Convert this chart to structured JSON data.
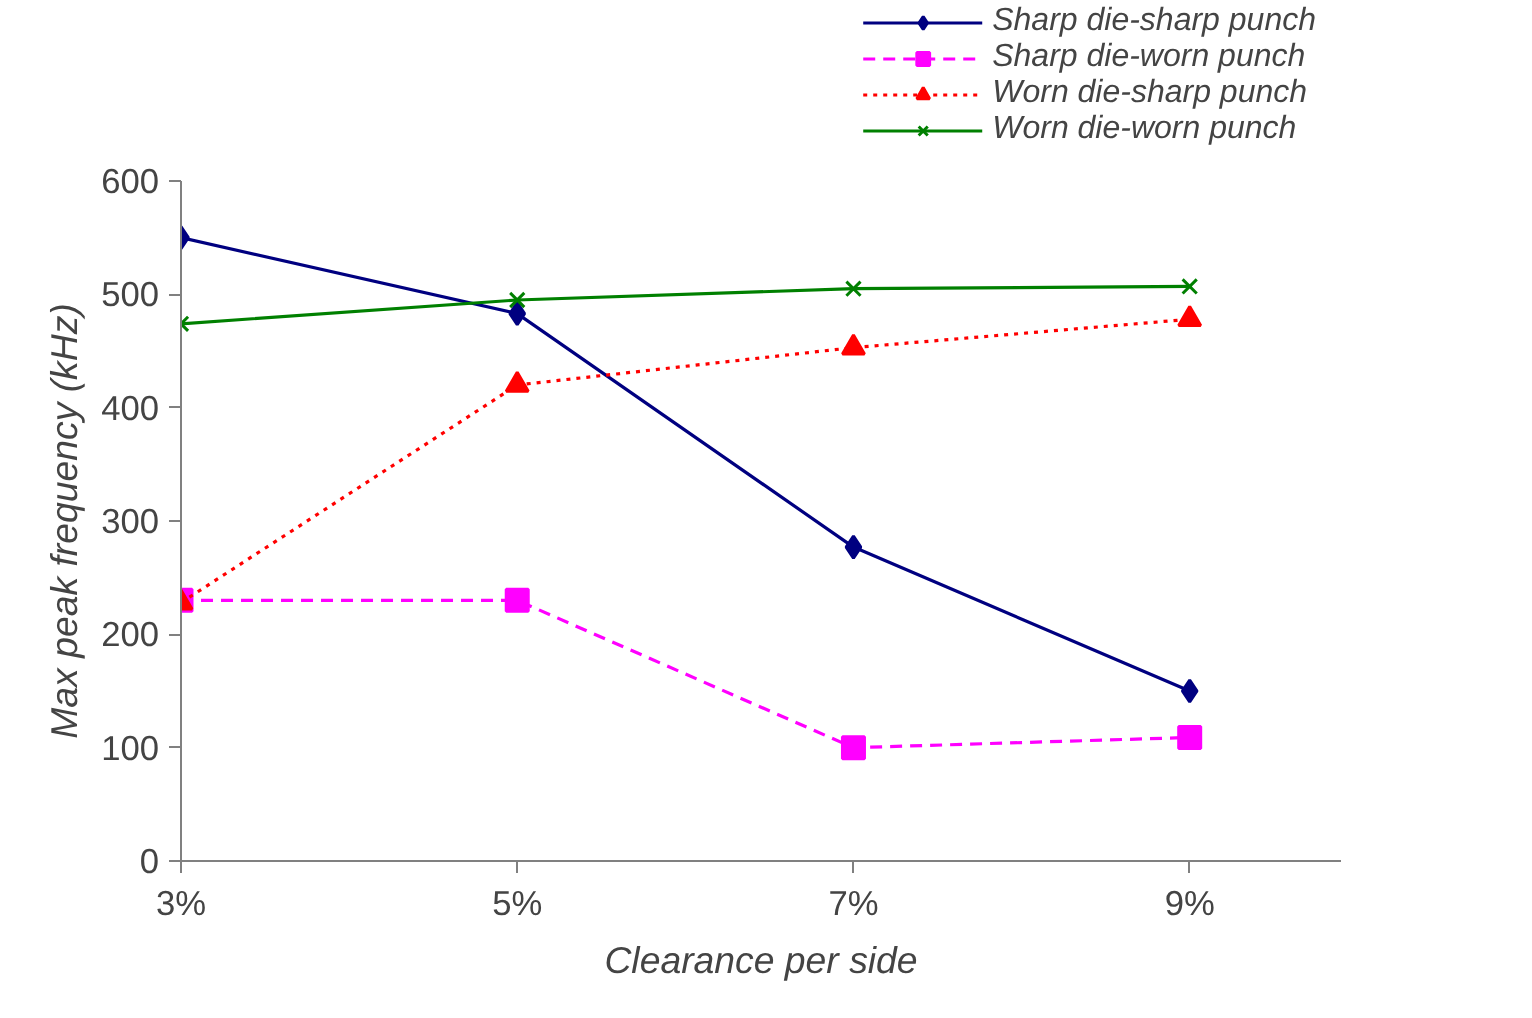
{
  "chart_data": {
    "type": "line",
    "xlabel": "Clearance per side",
    "ylabel": "Max peak frequency (kHz)",
    "x": [
      3,
      5,
      7,
      9
    ],
    "xlim": [
      3,
      9.9
    ],
    "xticks": [
      {
        "value": 3,
        "label": "3%"
      },
      {
        "value": 5,
        "label": "5%"
      },
      {
        "value": 7,
        "label": "7%"
      },
      {
        "value": 9,
        "label": "9%"
      }
    ],
    "ylim": [
      0,
      600
    ],
    "yticks": [
      0,
      100,
      200,
      300,
      400,
      500,
      600
    ],
    "grid": false,
    "legend": "top right",
    "series": [
      {
        "name": "Sharp die-sharp punch",
        "color": "#000080",
        "values": [
          550,
          483,
          277,
          150
        ],
        "marker": "diamond",
        "line_style": "solid"
      },
      {
        "name": "Sharp die-worn punch",
        "color": "#ff00ff",
        "values": [
          230,
          230,
          100,
          109
        ],
        "marker": "square",
        "line_style": "dashed"
      },
      {
        "name": "Worn die-sharp punch",
        "color": "#ff0000",
        "values": [
          228,
          420,
          453,
          478
        ],
        "marker": "triangle",
        "line_style": "dotted"
      },
      {
        "name": "Worn die-worn punch",
        "color": "#008000",
        "values": [
          474,
          495,
          505,
          507
        ],
        "marker": "cross",
        "line_style": "solid"
      }
    ]
  }
}
